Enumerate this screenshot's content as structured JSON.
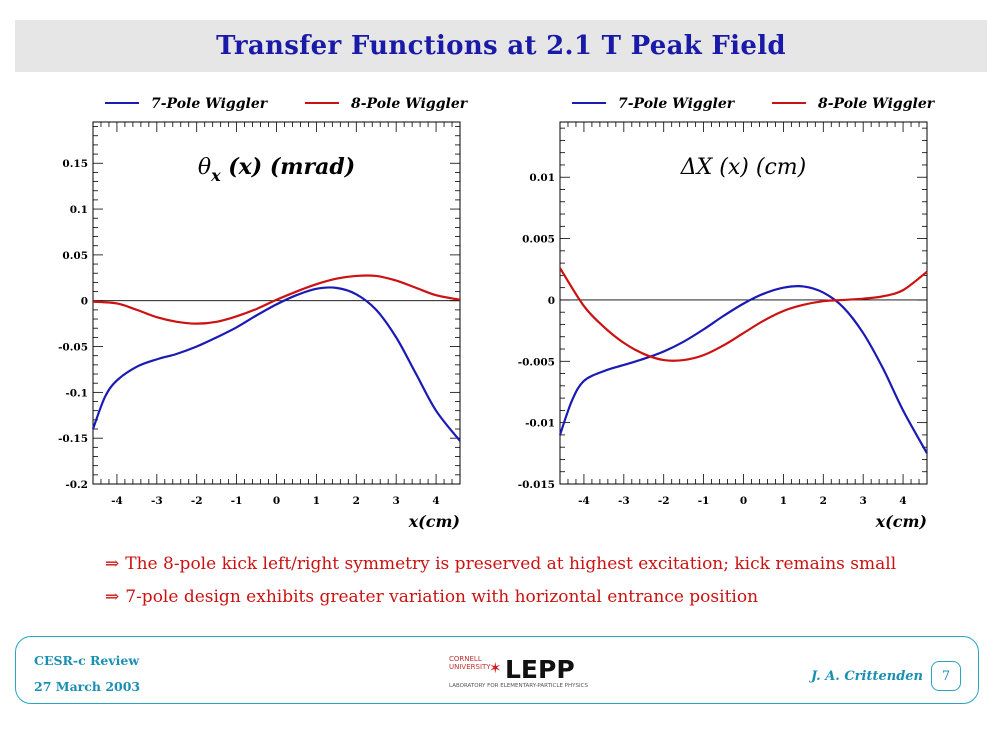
{
  "title": "Transfer Functions at 2.1 T Peak Field",
  "legend": {
    "series1": "7-Pole Wiggler",
    "series2": "8-Pole Wiggler"
  },
  "colors": {
    "series1": "#1a1ab4",
    "series2": "#cc1111",
    "title": "#1a1aa8",
    "notes": "#cc1111",
    "footer": "#1a8fb4"
  },
  "chart_data": [
    {
      "type": "line",
      "title_main": "θ",
      "title_sub": "x",
      "title_rest": " (x)  (mrad)",
      "xlabel": "x(cm)",
      "ylabel": "",
      "xlim": [
        -4.6,
        4.6
      ],
      "ylim": [
        -0.2,
        0.195
      ],
      "xticks": [
        "-4",
        "-3",
        "-2",
        "-1",
        "0",
        "1",
        "2",
        "3",
        "4"
      ],
      "yticks": [
        "0.15",
        "0.1",
        "0.05",
        "0",
        "-0.05",
        "-0.1",
        "-0.15",
        "-0.2"
      ],
      "series": [
        {
          "name": "7-Pole Wiggler",
          "x": [
            -4.6,
            -4.3,
            -4.0,
            -3.5,
            -3.0,
            -2.5,
            -2.0,
            -1.5,
            -1.0,
            -0.5,
            0.0,
            0.5,
            1.0,
            1.5,
            2.0,
            2.5,
            3.0,
            3.5,
            4.0,
            4.6
          ],
          "y": [
            -0.14,
            -0.105,
            -0.087,
            -0.072,
            -0.064,
            -0.058,
            -0.05,
            -0.04,
            -0.029,
            -0.016,
            -0.004,
            0.006,
            0.013,
            0.014,
            0.007,
            -0.01,
            -0.04,
            -0.08,
            -0.12,
            -0.153
          ]
        },
        {
          "name": "8-Pole Wiggler",
          "x": [
            -4.6,
            -4.0,
            -3.5,
            -3.0,
            -2.5,
            -2.0,
            -1.5,
            -1.0,
            -0.5,
            0.0,
            0.5,
            1.0,
            1.5,
            2.0,
            2.5,
            3.0,
            3.5,
            4.0,
            4.6
          ],
          "y": [
            -0.001,
            -0.003,
            -0.01,
            -0.018,
            -0.023,
            -0.025,
            -0.023,
            -0.017,
            -0.009,
            0.001,
            0.01,
            0.018,
            0.024,
            0.027,
            0.027,
            0.022,
            0.014,
            0.006,
            0.001
          ]
        }
      ]
    },
    {
      "type": "line",
      "title_main": "ΔX (x) (cm)",
      "title_sub": "",
      "title_rest": "",
      "xlabel": "x(cm)",
      "ylabel": "",
      "xlim": [
        -4.6,
        4.6
      ],
      "ylim": [
        -0.015,
        0.0145
      ],
      "xticks": [
        "-4",
        "-3",
        "-2",
        "-1",
        "0",
        "1",
        "2",
        "3",
        "4"
      ],
      "yticks": [
        "0.01",
        "0.005",
        "0",
        "-0.005",
        "-0.01",
        "-0.015"
      ],
      "series": [
        {
          "name": "7-Pole Wiggler",
          "x": [
            -4.6,
            -4.3,
            -4.0,
            -3.5,
            -3.0,
            -2.5,
            -2.0,
            -1.5,
            -1.0,
            -0.5,
            0.0,
            0.5,
            1.0,
            1.5,
            2.0,
            2.5,
            3.0,
            3.5,
            4.0,
            4.6
          ],
          "y": [
            -0.011,
            -0.0082,
            -0.0066,
            -0.0058,
            -0.0053,
            -0.0048,
            -0.0042,
            -0.0034,
            -0.0024,
            -0.0013,
            -0.0003,
            0.0005,
            0.001,
            0.0011,
            0.0006,
            -0.0006,
            -0.0027,
            -0.0056,
            -0.009,
            -0.0125
          ]
        },
        {
          "name": "8-Pole Wiggler",
          "x": [
            -4.6,
            -4.0,
            -3.5,
            -3.0,
            -2.5,
            -2.0,
            -1.5,
            -1.0,
            -0.5,
            0.0,
            0.5,
            1.0,
            1.5,
            2.0,
            2.5,
            3.0,
            3.5,
            4.0,
            4.6
          ],
          "y": [
            0.0026,
            -0.0005,
            -0.0022,
            -0.0035,
            -0.0044,
            -0.0049,
            -0.0049,
            -0.0045,
            -0.0037,
            -0.0027,
            -0.0017,
            -0.0009,
            -0.0004,
            -0.0001,
            0.0,
            0.0001,
            0.0003,
            0.0008,
            0.0023
          ]
        }
      ]
    }
  ],
  "notes": {
    "arrow": "⇒",
    "line1": "The 8-pole kick left/right symmetry is preserved at highest excitation; kick remains small",
    "line2": "7-pole design exhibits greater variation with horizontal entrance position"
  },
  "footer": {
    "event": "CESR-c Review",
    "date": "27 March 2003",
    "logo_top1": "CORNELL",
    "logo_top2": "UNIVERSITY",
    "logo_main": "LEPP",
    "logo_sub": "LABORATORY FOR ELEMENTARY-PARTICLE PHYSICS",
    "author": "J. A. Crittenden",
    "page": "7"
  }
}
